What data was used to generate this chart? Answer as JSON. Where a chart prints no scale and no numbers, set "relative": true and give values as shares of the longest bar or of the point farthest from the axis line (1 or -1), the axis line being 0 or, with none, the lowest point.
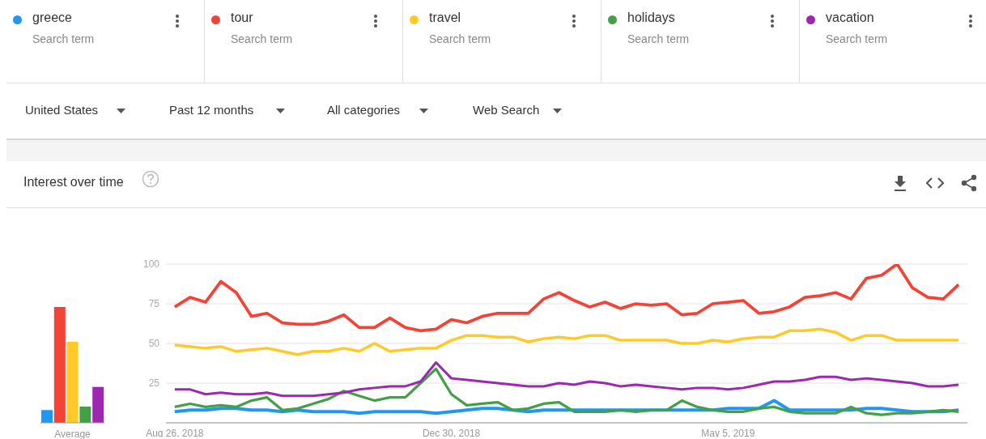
{
  "chart_data": [
    {
      "type": "bar",
      "relative": true,
      "xlabel": "Average",
      "categories": [
        null,
        null,
        null,
        null,
        null
      ],
      "values": [
        0.11,
        1,
        0.7,
        0.14,
        0.31
      ],
      "colors": [
        "#2196f3",
        "#f44336",
        "#ffca28",
        "#43a047",
        "#9c27b0"
      ]
    },
    {
      "type": "line",
      "title": "Interest over time",
      "legend": "top",
      "grid": "y",
      "marker": "none",
      "line_style": "solid",
      "annotations": [
        "Search term",
        "Search term",
        "Search term",
        "Search term",
        "Search term",
        "United States",
        "Past 12 months",
        "All categories",
        "Web Search"
      ],
      "x": [
        "2018-08-26",
        "2018-09-02",
        "2018-09-09",
        "2018-09-16",
        "2018-09-23",
        "2018-09-30",
        "2018-10-07",
        "2018-10-14",
        "2018-10-21",
        "2018-10-28",
        "2018-11-04",
        "2018-11-11",
        "2018-11-18",
        "2018-11-25",
        "2018-12-02",
        "2018-12-09",
        "2018-12-16",
        "2018-12-23",
        "2018-12-30",
        "2019-01-06",
        "2019-01-13",
        "2019-01-20",
        "2019-01-27",
        "2019-02-03",
        "2019-02-10",
        "2019-02-17",
        "2019-02-24",
        "2019-03-03",
        "2019-03-10",
        "2019-03-17",
        "2019-03-24",
        "2019-03-31",
        "2019-04-07",
        "2019-04-14",
        "2019-04-21",
        "2019-04-28",
        "2019-05-05",
        "2019-05-12",
        "2019-05-19",
        "2019-05-26",
        "2019-06-02",
        "2019-06-09",
        "2019-06-16",
        "2019-06-23",
        "2019-06-30",
        "2019-07-07",
        "2019-07-14",
        "2019-07-21",
        "2019-07-28",
        "2019-08-04",
        "2019-08-11",
        "2019-08-18"
      ],
      "xlim": [
        "2018-08-22",
        "2019-08-22"
      ],
      "xticks": [
        {
          "value": "2018-08-26",
          "label": "Aug 26, 2018"
        },
        {
          "value": "2018-12-30",
          "label": "Dec 30, 2018"
        },
        {
          "value": "2019-05-05",
          "label": "May 5, 2019"
        }
      ],
      "ylim": [
        0,
        100
      ],
      "yticks": [
        25,
        50,
        75,
        100
      ],
      "series": [
        {
          "name": "greece",
          "color": "#2196f3",
          "values": [
            7,
            8,
            8,
            9,
            9,
            8,
            8,
            7,
            8,
            7,
            7,
            7,
            6,
            7,
            7,
            7,
            7,
            6,
            7,
            8,
            9,
            9,
            8,
            7,
            8,
            8,
            8,
            8,
            8,
            8,
            8,
            8,
            8,
            8,
            8,
            8,
            9,
            9,
            9,
            14,
            8,
            8,
            8,
            8,
            8,
            9,
            9,
            8,
            7,
            7,
            7,
            8
          ]
        },
        {
          "name": "tour",
          "color": "#f44336",
          "values": [
            73,
            79,
            76,
            89,
            82,
            67,
            69,
            63,
            62,
            62,
            64,
            68,
            60,
            60,
            66,
            60,
            58,
            59,
            65,
            63,
            67,
            69,
            69,
            69,
            78,
            82,
            77,
            73,
            76,
            72,
            75,
            74,
            75,
            68,
            69,
            75,
            76,
            77,
            69,
            70,
            73,
            79,
            80,
            82,
            78,
            91,
            93,
            100,
            85,
            79,
            78,
            87
          ]
        },
        {
          "name": "travel",
          "color": "#ffca28",
          "values": [
            49,
            48,
            47,
            48,
            45,
            46,
            47,
            45,
            43,
            45,
            45,
            47,
            45,
            50,
            45,
            46,
            47,
            47,
            52,
            55,
            55,
            54,
            54,
            51,
            53,
            54,
            53,
            55,
            55,
            52,
            52,
            52,
            52,
            50,
            50,
            52,
            51,
            53,
            54,
            54,
            58,
            58,
            59,
            57,
            52,
            55,
            55,
            52,
            52,
            52,
            52,
            52
          ]
        },
        {
          "name": "holidays",
          "color": "#43a047",
          "values": [
            10,
            12,
            10,
            11,
            10,
            14,
            16,
            8,
            9,
            12,
            15,
            20,
            17,
            14,
            16,
            16,
            25,
            34,
            18,
            11,
            12,
            13,
            8,
            9,
            12,
            13,
            7,
            7,
            7,
            8,
            7,
            8,
            8,
            14,
            10,
            8,
            7,
            7,
            9,
            10,
            7,
            6,
            6,
            6,
            10,
            6,
            5,
            6,
            6,
            7,
            8,
            7
          ]
        },
        {
          "name": "vacation",
          "color": "#9c27b0",
          "values": [
            21,
            21,
            18,
            19,
            18,
            18,
            19,
            17,
            17,
            17,
            18,
            19,
            21,
            22,
            23,
            23,
            26,
            38,
            28,
            27,
            26,
            25,
            24,
            23,
            23,
            25,
            24,
            26,
            25,
            23,
            24,
            23,
            22,
            21,
            22,
            22,
            21,
            22,
            24,
            26,
            26,
            27,
            29,
            29,
            27,
            28,
            27,
            26,
            25,
            23,
            23,
            24
          ]
        }
      ]
    }
  ]
}
